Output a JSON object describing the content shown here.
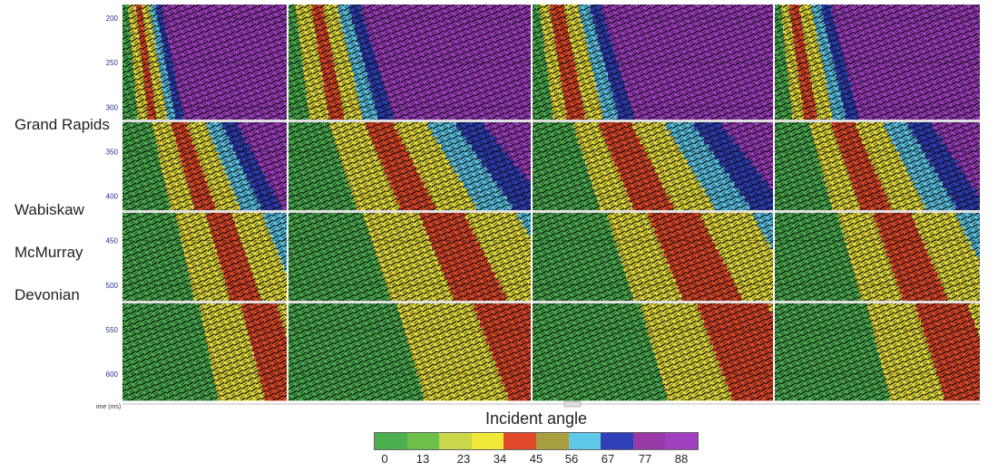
{
  "horizons": [
    {
      "label": "Grand Rapids"
    },
    {
      "label": "Wabiskaw"
    },
    {
      "label": "McMurray"
    },
    {
      "label": "Devonian"
    }
  ],
  "axis": {
    "label": "ime (ms)",
    "ticks": [
      200,
      250,
      300,
      350,
      400,
      450,
      500,
      550,
      600
    ]
  },
  "colorbar": {
    "title": "Incident angle",
    "tick_labels": [
      "0",
      "13",
      "23",
      "34",
      "45",
      "56",
      "67",
      "77",
      "88"
    ],
    "colors": [
      "#4caf50",
      "#6cc04a",
      "#c8d84a",
      "#f2e83a",
      "#e04a2a",
      "#a8a040",
      "#5ec8e8",
      "#3040b8",
      "#9a3aa8",
      "#a040c0"
    ]
  },
  "palette": {
    "green": "#4caf50",
    "yellow": "#e8e040",
    "red": "#e04a2a",
    "cyan": "#5ec8e8",
    "blue": "#3040b8",
    "purple": "#a040c0",
    "grid": "#e0e0e0"
  }
}
